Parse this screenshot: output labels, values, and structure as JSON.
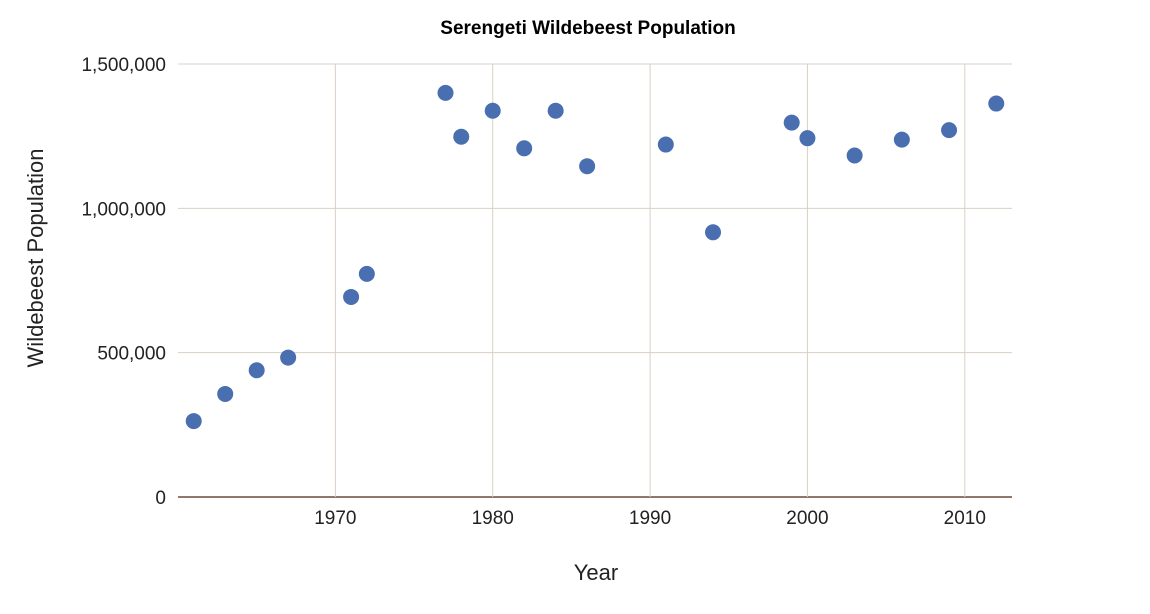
{
  "chart_data": {
    "type": "scatter",
    "title": "Serengeti Wildebeest Population",
    "xlabel": "Year",
    "ylabel": "Wildebeest Population",
    "xlim": [
      1960,
      2013
    ],
    "ylim": [
      0,
      1500000
    ],
    "x_ticks": [
      1970,
      1980,
      1990,
      2000,
      2010
    ],
    "x_tick_labels": [
      "1970",
      "1980",
      "1990",
      "2000",
      "2010"
    ],
    "y_ticks": [
      0,
      500000,
      1000000,
      1500000
    ],
    "y_tick_labels": [
      "0",
      "500,000",
      "1,000,000",
      "1,500,000"
    ],
    "grid": true,
    "legend": false,
    "colors": {
      "point": "#4a6fb0",
      "grid": "#d8d0c4",
      "x_axis": "#6b4a3a"
    },
    "series": [
      {
        "points": [
          {
            "x": 1961,
            "y": 263000
          },
          {
            "x": 1963,
            "y": 357000
          },
          {
            "x": 1965,
            "y": 439000
          },
          {
            "x": 1967,
            "y": 483000
          },
          {
            "x": 1971,
            "y": 693000
          },
          {
            "x": 1972,
            "y": 773000
          },
          {
            "x": 1977,
            "y": 1400000
          },
          {
            "x": 1978,
            "y": 1248000
          },
          {
            "x": 1980,
            "y": 1338000
          },
          {
            "x": 1982,
            "y": 1208000
          },
          {
            "x": 1984,
            "y": 1338000
          },
          {
            "x": 1986,
            "y": 1146000
          },
          {
            "x": 1991,
            "y": 1221000
          },
          {
            "x": 1994,
            "y": 917000
          },
          {
            "x": 1999,
            "y": 1297000
          },
          {
            "x": 2000,
            "y": 1243000
          },
          {
            "x": 2003,
            "y": 1183000
          },
          {
            "x": 2006,
            "y": 1238000
          },
          {
            "x": 2009,
            "y": 1271000
          },
          {
            "x": 2012,
            "y": 1363000
          }
        ]
      }
    ]
  }
}
